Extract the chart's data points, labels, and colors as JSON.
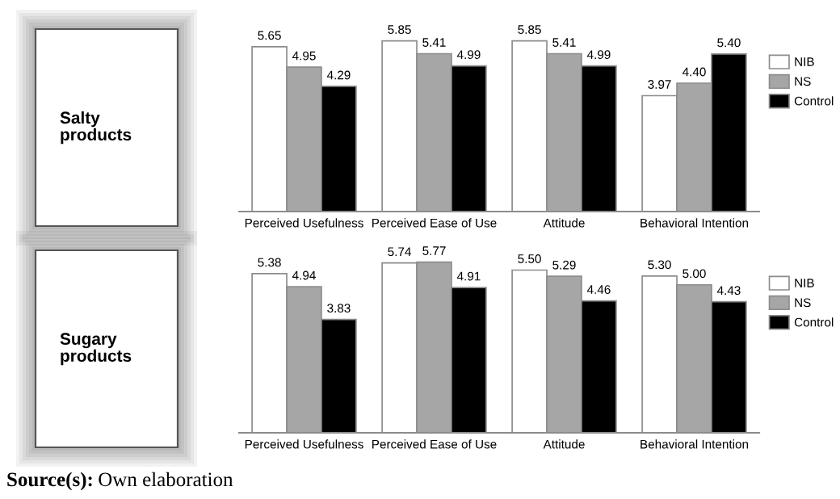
{
  "chart_data": [
    {
      "type": "bar",
      "ylabel": "Salty\nproducts",
      "categories": [
        "Perceived Usefulness",
        "Perceived Ease of Use",
        "Attitude",
        "Behavioral Intention"
      ],
      "series": [
        {
          "name": "NIB",
          "color": "#ffffff",
          "values": [
            5.65,
            5.85,
            5.85,
            3.97
          ],
          "value_labels": [
            "5.65",
            "5.85",
            "5.85",
            "3.97"
          ]
        },
        {
          "name": "NS",
          "color": "#a6a6a6",
          "values": [
            4.95,
            5.41,
            5.41,
            4.4
          ],
          "value_labels": [
            "4.95",
            "5.41",
            "5.41",
            "4.40"
          ]
        },
        {
          "name": "Control",
          "color": "#000000",
          "values": [
            4.29,
            4.99,
            4.99,
            5.4
          ],
          "value_labels": [
            "4.29",
            "4.99",
            "4.99",
            "5.40"
          ]
        }
      ],
      "tick_labels": "x",
      "legend": "right"
    },
    {
      "type": "bar",
      "ylabel": "Sugary\nproducts",
      "categories": [
        "Perceived Usefulness",
        "Perceived Ease of Use",
        "Attitude",
        "Behavioral Intention"
      ],
      "series": [
        {
          "name": "NIB",
          "color": "#ffffff",
          "values": [
            5.38,
            5.74,
            5.5,
            5.3
          ],
          "value_labels": [
            "5.38",
            "5.74",
            "5.50",
            "5.30"
          ]
        },
        {
          "name": "NS",
          "color": "#a6a6a6",
          "values": [
            4.94,
            5.77,
            5.29,
            5.0
          ],
          "value_labels": [
            "4.94",
            "5.77",
            "5.29",
            "5.00"
          ]
        },
        {
          "name": "Control",
          "color": "#000000",
          "values": [
            3.83,
            4.91,
            4.46,
            4.43
          ],
          "value_labels": [
            "3.83",
            "4.91",
            "4.46",
            "4.43"
          ]
        }
      ],
      "tick_labels": "x",
      "legend": "right",
      "annotations": [
        "Source(s): Own elaboration"
      ]
    }
  ]
}
